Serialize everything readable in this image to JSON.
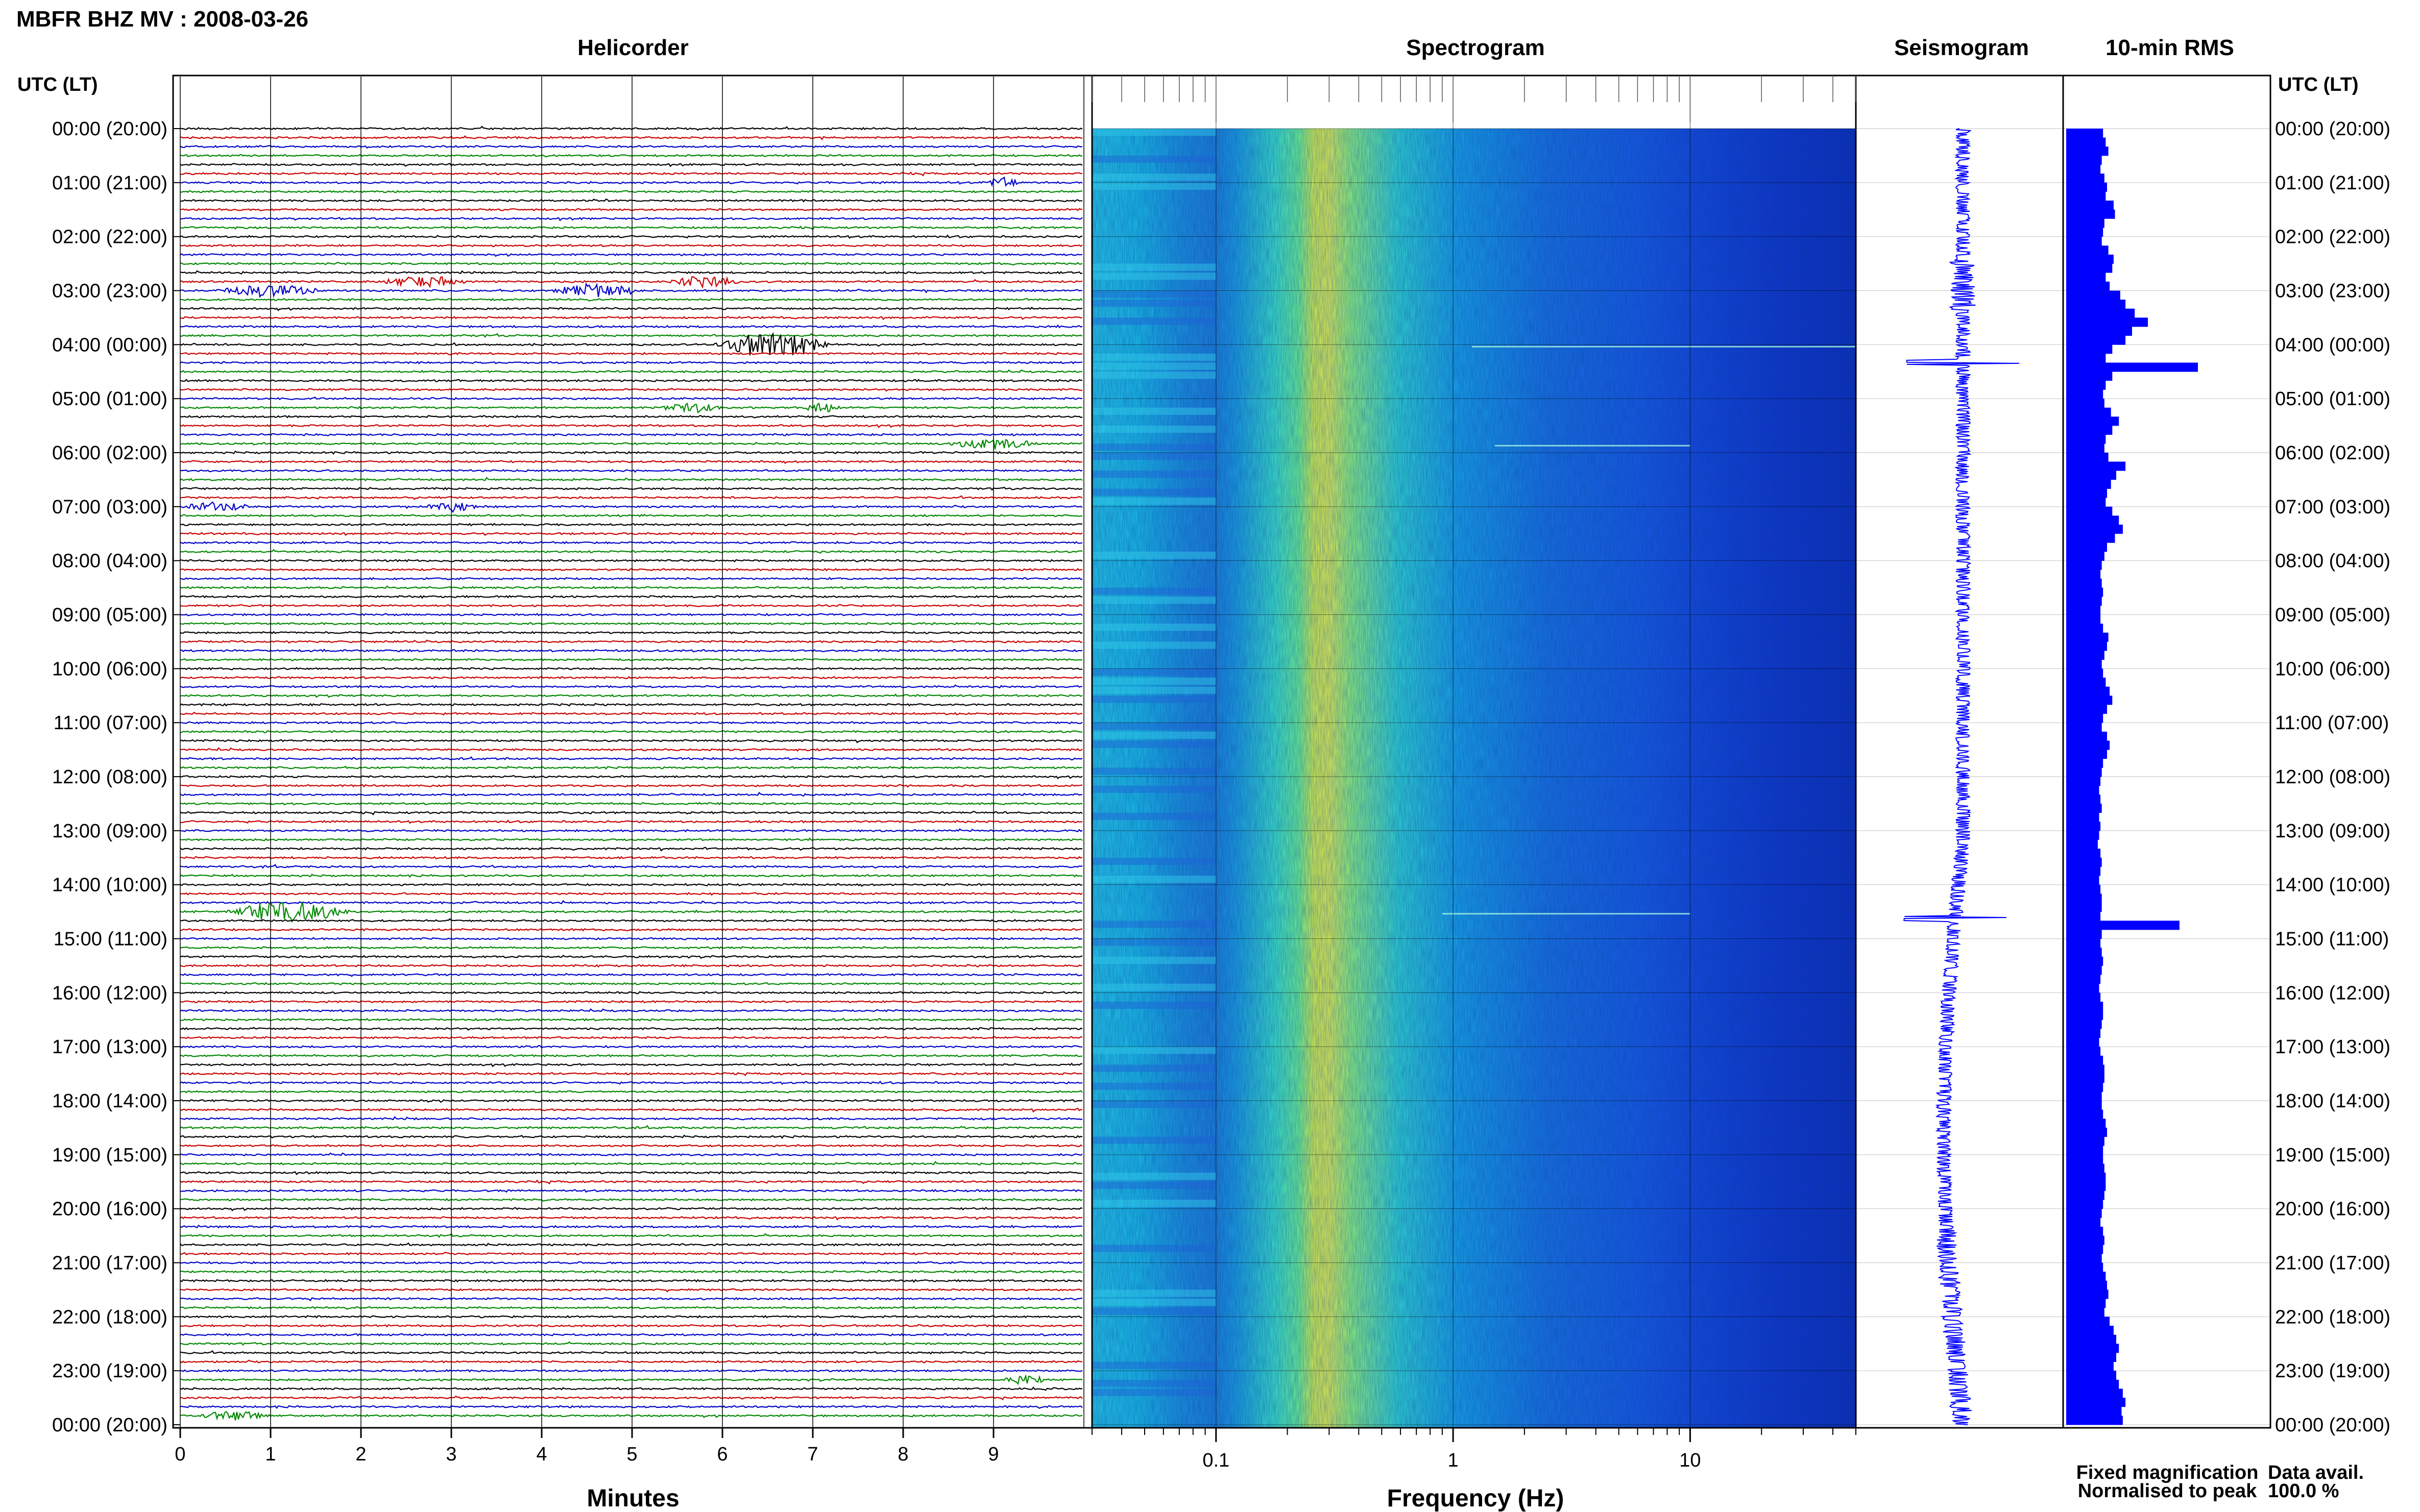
{
  "header": {
    "title": "MBFR BHZ MV : 2008-03-26"
  },
  "panels": {
    "helicorder": "Helicorder",
    "spectrogram": "Spectrogram",
    "seismogram": "Seismogram",
    "rms": "10-min RMS"
  },
  "axes": {
    "time_header_left": "UTC (LT)",
    "time_header_right": "UTC (LT)",
    "time_labels": [
      "00:00 (20:00)",
      "01:00 (21:00)",
      "02:00 (22:00)",
      "03:00 (23:00)",
      "04:00 (00:00)",
      "05:00 (01:00)",
      "06:00 (02:00)",
      "07:00 (03:00)",
      "08:00 (04:00)",
      "09:00 (05:00)",
      "10:00 (06:00)",
      "11:00 (07:00)",
      "12:00 (08:00)",
      "13:00 (09:00)",
      "14:00 (10:00)",
      "15:00 (11:00)",
      "16:00 (12:00)",
      "17:00 (13:00)",
      "18:00 (14:00)",
      "19:00 (15:00)",
      "20:00 (16:00)",
      "21:00 (17:00)",
      "22:00 (18:00)",
      "23:00 (19:00)",
      "00:00 (20:00)"
    ],
    "minutes_label": "Minutes",
    "minute_ticks": [
      "0",
      "1",
      "2",
      "3",
      "4",
      "5",
      "6",
      "7",
      "8",
      "9"
    ],
    "frequency_label": "Frequency (Hz)",
    "frequency_ticks": [
      "0.1",
      "1",
      "10"
    ]
  },
  "legend": {
    "fixed": "Fixed magnification",
    "fixed_color": "#0000ff",
    "normalised": "Normalised to peak",
    "normalised_color": "#ff0000",
    "avail_label": "Data avail.",
    "avail_value": "100.0 %"
  },
  "colors": {
    "trace_cycle": [
      "#000000",
      "#cc0000",
      "#0000cc",
      "#008800"
    ],
    "rms_fill": "#0000ff",
    "seismogram": "#0000ff"
  },
  "chart_data": {
    "type": "seismic-summary",
    "title": "MBFR BHZ MV : 2008-03-26",
    "helicorder": {
      "line_minutes": 10,
      "lines_per_hour": 6,
      "hours": 24,
      "events": [
        {
          "line": 6,
          "start_min": 8.9,
          "duration_min": 0.4,
          "amp": 1.5
        },
        {
          "line": 17,
          "start_min": 2.2,
          "duration_min": 1.0,
          "amp": 1.7
        },
        {
          "line": 17,
          "start_min": 5.4,
          "duration_min": 0.8,
          "amp": 2.0
        },
        {
          "line": 18,
          "start_min": 0.4,
          "duration_min": 1.2,
          "amp": 2.1
        },
        {
          "line": 18,
          "start_min": 4.1,
          "duration_min": 1.0,
          "amp": 2.3
        },
        {
          "line": 24,
          "start_min": 5.9,
          "duration_min": 1.3,
          "amp": 4.5
        },
        {
          "line": 31,
          "start_min": 5.3,
          "duration_min": 0.7,
          "amp": 1.6
        },
        {
          "line": 31,
          "start_min": 6.9,
          "duration_min": 0.4,
          "amp": 1.6
        },
        {
          "line": 35,
          "start_min": 8.5,
          "duration_min": 1.0,
          "amp": 1.8
        },
        {
          "line": 42,
          "start_min": 0.0,
          "duration_min": 0.8,
          "amp": 1.5
        },
        {
          "line": 42,
          "start_min": 2.7,
          "duration_min": 0.6,
          "amp": 1.5
        },
        {
          "line": 87,
          "start_min": 0.5,
          "duration_min": 1.4,
          "amp": 3.5
        },
        {
          "line": 139,
          "start_min": 9.1,
          "duration_min": 0.5,
          "amp": 1.6
        },
        {
          "line": 143,
          "start_min": 0.2,
          "duration_min": 0.8,
          "amp": 1.6
        }
      ]
    },
    "spectrogram": {
      "freq_min_hz": 0.03,
      "freq_max_hz": 50,
      "freq_scale": "log",
      "peak_band_hz": [
        0.2,
        0.3
      ]
    },
    "rms_10min": {
      "units": "relative",
      "values": [
        0.28,
        0.3,
        0.32,
        0.27,
        0.26,
        0.29,
        0.31,
        0.3,
        0.36,
        0.37,
        0.29,
        0.28,
        0.27,
        0.32,
        0.36,
        0.35,
        0.3,
        0.33,
        0.41,
        0.45,
        0.52,
        0.62,
        0.5,
        0.45,
        0.35,
        0.3,
        1.0,
        0.35,
        0.3,
        0.28,
        0.29,
        0.34,
        0.4,
        0.35,
        0.3,
        0.29,
        0.32,
        0.45,
        0.38,
        0.34,
        0.31,
        0.3,
        0.35,
        0.4,
        0.43,
        0.37,
        0.31,
        0.29,
        0.27,
        0.26,
        0.27,
        0.28,
        0.27,
        0.26,
        0.26,
        0.28,
        0.32,
        0.31,
        0.29,
        0.27,
        0.28,
        0.3,
        0.33,
        0.35,
        0.31,
        0.28,
        0.27,
        0.31,
        0.33,
        0.31,
        0.28,
        0.27,
        0.26,
        0.25,
        0.26,
        0.27,
        0.25,
        0.26,
        0.25,
        0.24,
        0.26,
        0.27,
        0.26,
        0.25,
        0.26,
        0.27,
        0.27,
        0.26,
        0.86,
        0.27,
        0.26,
        0.27,
        0.28,
        0.27,
        0.26,
        0.25,
        0.26,
        0.28,
        0.28,
        0.27,
        0.26,
        0.25,
        0.26,
        0.28,
        0.29,
        0.29,
        0.28,
        0.27,
        0.27,
        0.28,
        0.3,
        0.31,
        0.29,
        0.28,
        0.28,
        0.29,
        0.3,
        0.3,
        0.29,
        0.28,
        0.27,
        0.26,
        0.28,
        0.29,
        0.28,
        0.27,
        0.28,
        0.3,
        0.31,
        0.32,
        0.3,
        0.29,
        0.33,
        0.36,
        0.38,
        0.4,
        0.38,
        0.36,
        0.38,
        0.4,
        0.43,
        0.45,
        0.42,
        0.43
      ]
    }
  }
}
